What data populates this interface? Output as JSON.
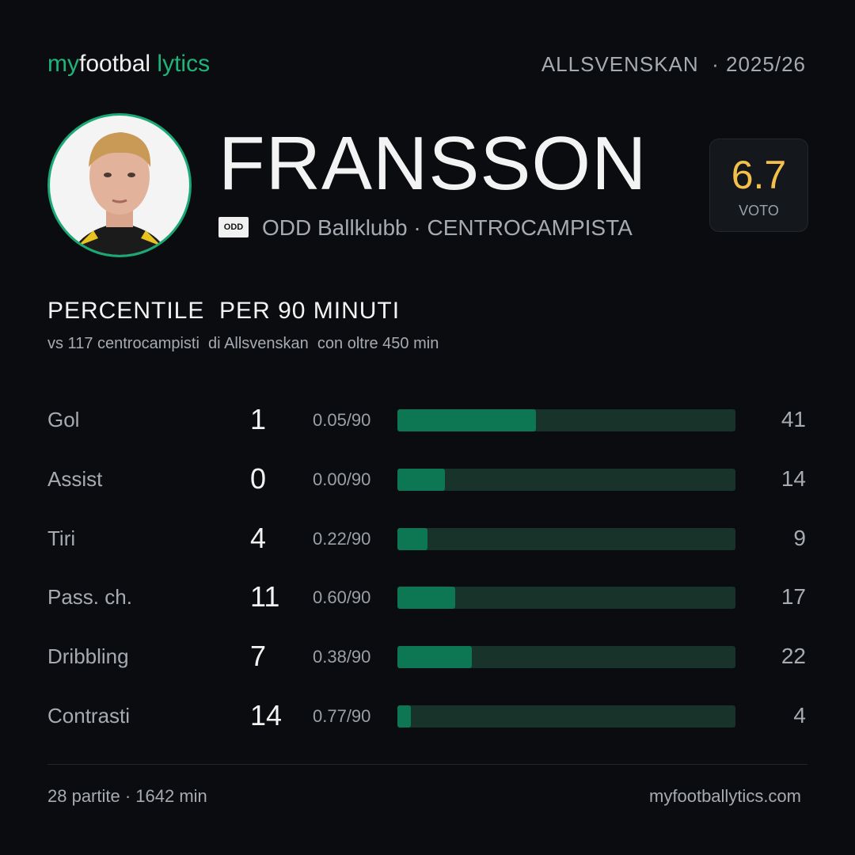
{
  "brand": {
    "my": "my",
    "football": "footbal",
    "lytics": "lytics"
  },
  "header": {
    "competition": "ALLSVENSKAN  · 2025/26"
  },
  "player": {
    "name": "FRANSSON",
    "club": "ODD Ballklubb · CENTROCAMPISTA",
    "club_logo": "ODD"
  },
  "rating": {
    "value": 6.7,
    "label": "VOTO"
  },
  "section": {
    "title": "PERCENTILE  PER 90 MINUTI",
    "subtitle": "vs 117 centrocampisti  di Allsvenskan  con oltre 450 min"
  },
  "stats": {
    "percentile_lim": [
      0,
      100
    ],
    "rows": [
      {
        "label": "Gol",
        "total": 1,
        "per90": "0.05/90",
        "percentile": 41
      },
      {
        "label": "Assist",
        "total": 0,
        "per90": "0.00/90",
        "percentile": 14
      },
      {
        "label": "Tiri",
        "total": 4,
        "per90": "0.22/90",
        "percentile": 9
      },
      {
        "label": "Pass. ch.",
        "total": 11,
        "per90": "0.60/90",
        "percentile": 17
      },
      {
        "label": "Dribbling",
        "total": 7,
        "per90": "0.38/90",
        "percentile": 22
      },
      {
        "label": "Contrasti",
        "total": 14,
        "per90": "0.77/90",
        "percentile": 4
      }
    ]
  },
  "footer": {
    "summary": "28 partite · 1642 min",
    "site": "myfootballytics.com"
  }
}
